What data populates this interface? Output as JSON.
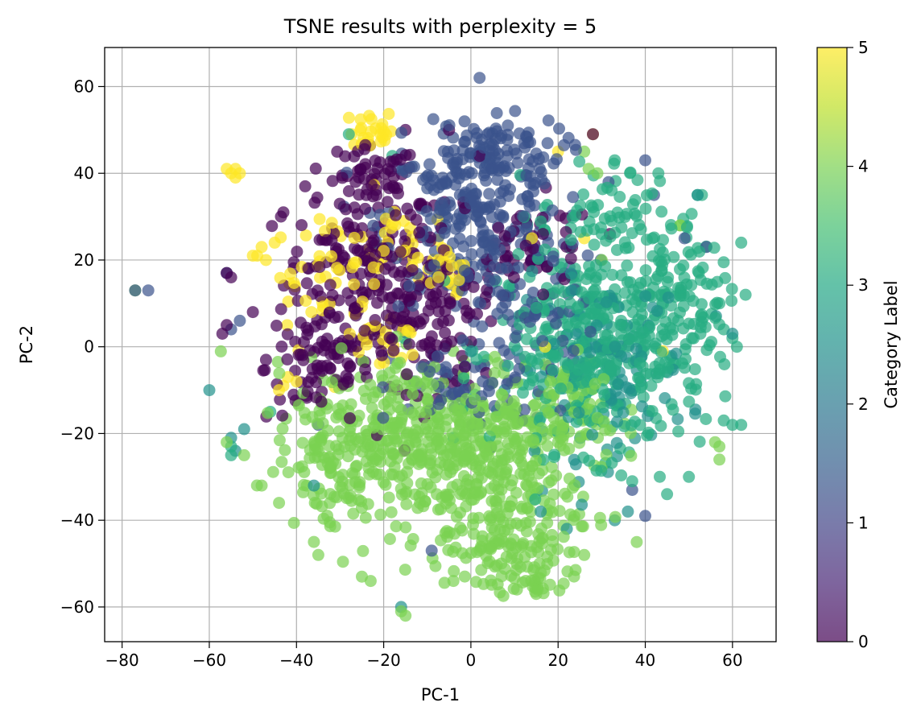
{
  "chart_data": {
    "type": "scatter",
    "title": "TSNE results with perplexity = 5",
    "xlabel": "PC-1",
    "ylabel": "PC-2",
    "xlim": [
      -84,
      70
    ],
    "ylim": [
      -68,
      69
    ],
    "x_ticks": [
      -80,
      -60,
      -40,
      -20,
      0,
      20,
      40,
      60
    ],
    "y_ticks": [
      -60,
      -40,
      -20,
      0,
      20,
      40,
      60
    ],
    "x_tick_labels": [
      "−80",
      "−60",
      "−40",
      "−20",
      "0",
      "20",
      "40",
      "60"
    ],
    "y_tick_labels": [
      "−60",
      "−40",
      "−20",
      "0",
      "20",
      "40",
      "60"
    ],
    "grid": true,
    "marker_alpha": 0.7,
    "colormap": "viridis",
    "colorbar": {
      "label": "Category Label",
      "range": [
        0,
        5
      ],
      "ticks": [
        0,
        1,
        2,
        3,
        4,
        5
      ],
      "tick_labels": [
        "0",
        "1",
        "2",
        "3",
        "4",
        "5"
      ]
    },
    "category_colors": {
      "0": "#440154",
      "1": "#3b528b",
      "2": "#21918c",
      "3": "#27ad81",
      "4": "#7ad151",
      "5": "#fde725"
    },
    "series": [
      {
        "category": 0,
        "clusters": [
          {
            "cx": -25,
            "cy": 15,
            "sx": 9,
            "sy": 12,
            "n": 200
          },
          {
            "cx": -8,
            "cy": 10,
            "sx": 7,
            "sy": 10,
            "n": 110
          },
          {
            "cx": -35,
            "cy": -5,
            "sx": 6,
            "sy": 6,
            "n": 60
          },
          {
            "cx": -22,
            "cy": 38,
            "sx": 5,
            "sy": 4,
            "n": 50
          },
          {
            "cx": 15,
            "cy": 22,
            "sx": 7,
            "sy": 6,
            "n": 45
          }
        ],
        "points": [
          [
            -56,
            17
          ],
          [
            -55,
            16
          ],
          [
            -57,
            3
          ],
          [
            -56,
            5
          ],
          [
            -43,
            31
          ],
          [
            -38,
            37
          ],
          [
            -15,
            50
          ],
          [
            -5,
            50
          ],
          [
            2,
            44
          ],
          [
            28,
            49
          ],
          [
            -50,
            8
          ],
          [
            -47,
            -3
          ]
        ]
      },
      {
        "category": 1,
        "clusters": [
          {
            "cx": 0,
            "cy": 30,
            "sx": 10,
            "sy": 10,
            "n": 230
          },
          {
            "cx": 5,
            "cy": 45,
            "sx": 8,
            "sy": 4,
            "n": 90
          },
          {
            "cx": 12,
            "cy": 10,
            "sx": 8,
            "sy": 10,
            "n": 80
          },
          {
            "cx": 0,
            "cy": -10,
            "sx": 9,
            "sy": 5,
            "n": 60
          }
        ],
        "points": [
          [
            2,
            62
          ],
          [
            -74,
            13
          ],
          [
            -77,
            13
          ],
          [
            -56,
            17
          ],
          [
            -53,
            6
          ],
          [
            -55,
            4
          ],
          [
            37,
            -33
          ],
          [
            40,
            -39
          ],
          [
            -9,
            -47
          ],
          [
            40,
            43
          ],
          [
            42,
            35
          ],
          [
            49,
            25
          ],
          [
            54,
            23
          ],
          [
            -35,
            -18
          ]
        ]
      },
      {
        "category": 2,
        "clusters": [
          {
            "cx": 30,
            "cy": -5,
            "sx": 10,
            "sy": 10,
            "n": 130
          }
        ],
        "points": [
          [
            -16,
            -60
          ],
          [
            -54,
            -24
          ],
          [
            -55,
            -21
          ],
          [
            -36,
            -32
          ],
          [
            22,
            -42
          ],
          [
            33,
            -40
          ],
          [
            36,
            -38
          ],
          [
            60,
            3
          ],
          [
            52,
            35
          ],
          [
            -60,
            -10
          ],
          [
            -52,
            -19
          ],
          [
            16,
            -38
          ]
        ]
      },
      {
        "category": 3,
        "clusters": [
          {
            "cx": 30,
            "cy": 0,
            "sx": 12,
            "sy": 12,
            "n": 400
          },
          {
            "cx": 45,
            "cy": 10,
            "sx": 8,
            "sy": 10,
            "n": 100
          },
          {
            "cx": 32,
            "cy": 30,
            "sx": 8,
            "sy": 6,
            "n": 60
          }
        ],
        "points": [
          [
            60,
            2
          ],
          [
            58,
            4
          ],
          [
            60,
            -18
          ],
          [
            62,
            -18
          ],
          [
            57,
            10
          ],
          [
            62,
            24
          ],
          [
            63,
            12
          ],
          [
            52,
            35
          ],
          [
            53,
            35
          ],
          [
            50,
            -30
          ],
          [
            45,
            -34
          ],
          [
            37,
            -31
          ],
          [
            43,
            40
          ],
          [
            33,
            43
          ],
          [
            -46,
            -15
          ],
          [
            -55,
            -23
          ],
          [
            -55,
            -25
          ],
          [
            -28,
            49
          ],
          [
            -18,
            44
          ],
          [
            58,
            -17
          ],
          [
            61,
            0
          ]
        ]
      },
      {
        "category": 4,
        "clusters": [
          {
            "cx": -10,
            "cy": -20,
            "sx": 14,
            "sy": 9,
            "n": 380
          },
          {
            "cx": 5,
            "cy": -35,
            "sx": 10,
            "sy": 10,
            "n": 220
          },
          {
            "cx": 10,
            "cy": -50,
            "sx": 8,
            "sy": 5,
            "n": 80
          },
          {
            "cx": 20,
            "cy": -15,
            "sx": 7,
            "sy": 6,
            "n": 90
          },
          {
            "cx": -30,
            "cy": -25,
            "sx": 7,
            "sy": 8,
            "n": 100
          }
        ],
        "points": [
          [
            -77,
            13
          ],
          [
            -48,
            -32
          ],
          [
            -44,
            -36
          ],
          [
            -36,
            -45
          ],
          [
            -35,
            -48
          ],
          [
            -25,
            -53
          ],
          [
            -23,
            -54
          ],
          [
            -16,
            -61
          ],
          [
            -15,
            -62
          ],
          [
            15,
            -57
          ],
          [
            26,
            -48
          ],
          [
            56,
            -22
          ],
          [
            57,
            -26
          ],
          [
            48,
            28
          ],
          [
            26,
            45
          ],
          [
            27,
            41
          ],
          [
            29,
            40
          ],
          [
            30,
            20
          ],
          [
            -56,
            -22
          ],
          [
            -52,
            -25
          ],
          [
            -20,
            -18
          ],
          [
            -4,
            -54
          ],
          [
            7,
            -50
          ],
          [
            48,
            28
          ],
          [
            57,
            -23
          ]
        ]
      },
      {
        "category": 5,
        "clusters": [
          {
            "cx": -22,
            "cy": 50,
            "sx": 3,
            "sy": 2,
            "n": 25
          },
          {
            "cx": -35,
            "cy": 15,
            "sx": 6,
            "sy": 8,
            "n": 40
          },
          {
            "cx": -20,
            "cy": 25,
            "sx": 5,
            "sy": 5,
            "n": 35
          },
          {
            "cx": -20,
            "cy": 2,
            "sx": 4,
            "sy": 3,
            "n": 25
          },
          {
            "cx": -6,
            "cy": 18,
            "sx": 3,
            "sy": 4,
            "n": 25
          }
        ],
        "points": [
          [
            -56,
            41
          ],
          [
            -55,
            40
          ],
          [
            -54,
            39
          ],
          [
            -53,
            40
          ],
          [
            -54,
            41
          ],
          [
            -50,
            21
          ],
          [
            -48,
            23
          ],
          [
            -47,
            20
          ],
          [
            -45,
            24
          ],
          [
            -49,
            21
          ],
          [
            -42,
            -7
          ],
          [
            -43,
            -9
          ],
          [
            -40,
            -8
          ],
          [
            -44,
            -10
          ],
          [
            26,
            25
          ],
          [
            14,
            25
          ],
          [
            28,
            49
          ],
          [
            20,
            45
          ],
          [
            44,
            -1
          ],
          [
            17,
            0
          ]
        ]
      }
    ]
  }
}
